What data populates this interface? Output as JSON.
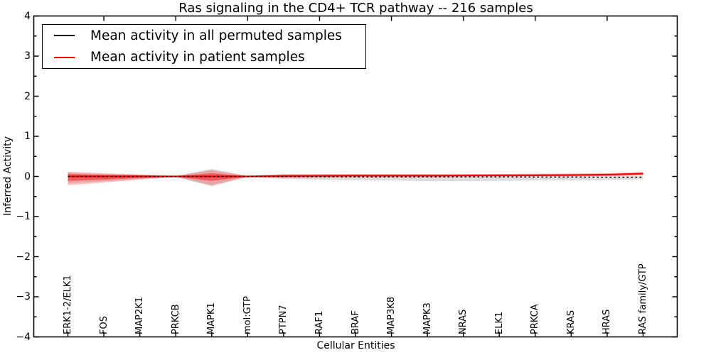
{
  "title": "Ras signaling in the CD4+ TCR pathway -- 216 samples",
  "axes": {
    "xlabel": "Cellular Entities",
    "ylabel": "Inferred Activity",
    "yticks": [
      4,
      3,
      2,
      1,
      0,
      -1,
      -2,
      -3,
      -4
    ],
    "yminor_step": 0.5
  },
  "legend": {
    "items": [
      {
        "label": "Mean activity in all permuted samples",
        "color": "#000000"
      },
      {
        "label": "Mean activity in patient samples",
        "color": "#ff0000"
      }
    ]
  },
  "chart_data": {
    "type": "line",
    "title": "Ras signaling in the CD4+ TCR pathway -- 216 samples",
    "xlabel": "Cellular Entities",
    "ylabel": "Inferred Activity",
    "ylim": [
      -4,
      4
    ],
    "xlim": [
      -0.95,
      16.95
    ],
    "grid": false,
    "legend_position": "upper left",
    "categories": [
      "ERK1-2/ELK1",
      "FOS",
      "MAP2K1",
      "PRKCB",
      "MAPK1",
      "mol:GTP",
      "PTPN7",
      "RAF1",
      "BRAF",
      "MAP3K8",
      "MAPK3",
      "NRAS",
      "ELK1",
      "PRKCA",
      "KRAS",
      "HRAS",
      "RAS family/GTP"
    ],
    "series": [
      {
        "name": "Mean activity in patient samples",
        "color": "#ff0000",
        "linestyle": "solid",
        "values": [
          0,
          0,
          0,
          0,
          0,
          0,
          0.01,
          0.015,
          0.02,
          0.02,
          0.02,
          0.025,
          0.03,
          0.03,
          0.035,
          0.045,
          0.07
        ]
      },
      {
        "name": "Mean activity in all permuted samples",
        "color": "#000000",
        "linestyle": "dashed",
        "values": [
          0,
          0,
          0,
          0,
          0,
          0,
          0,
          -0.005,
          -0.01,
          -0.01,
          -0.01,
          -0.01,
          -0.01,
          -0.015,
          -0.015,
          -0.02,
          -0.02
        ]
      }
    ],
    "bands": [
      {
        "name": "permuted-samples-range",
        "color": "#888888",
        "opacity": 0.28,
        "upper": [
          0.09,
          0.06,
          0.04,
          0.01,
          0.19,
          0.01,
          0.05,
          0.04,
          0.05,
          0.05,
          0.05,
          0.04,
          0.04,
          0.04,
          0.04,
          0.03,
          0.02
        ],
        "lower": [
          -0.17,
          -0.12,
          -0.06,
          -0.01,
          -0.25,
          -0.01,
          -0.06,
          -0.08,
          -0.09,
          -0.1,
          -0.12,
          -0.12,
          -0.11,
          -0.1,
          -0.1,
          -0.09,
          -0.07
        ]
      },
      {
        "name": "patient-samples-range-outer",
        "color": "#ff0000",
        "opacity": 0.25,
        "upper": [
          0.12,
          0.08,
          0.05,
          0.01,
          0.16,
          0.01,
          0.06,
          0.06,
          0.06,
          0.06,
          0.06,
          0.06,
          0.06,
          0.07,
          0.07,
          0.08,
          0.11
        ],
        "lower": [
          -0.22,
          -0.15,
          -0.08,
          -0.01,
          -0.22,
          -0.01,
          -0.04,
          -0.03,
          -0.02,
          -0.02,
          -0.02,
          -0.01,
          -0.01,
          0.0,
          0.0,
          0.01,
          0.03
        ]
      },
      {
        "name": "patient-samples-range-inner",
        "color": "#ff0000",
        "opacity": 0.45,
        "upper": [
          0.06,
          0.04,
          0.03,
          0.005,
          0.08,
          0.005,
          0.035,
          0.04,
          0.04,
          0.04,
          0.04,
          0.04,
          0.045,
          0.045,
          0.05,
          0.055,
          0.09
        ],
        "lower": [
          -0.11,
          -0.08,
          -0.04,
          -0.005,
          -0.11,
          -0.005,
          -0.015,
          -0.005,
          0.0,
          0.0,
          0.0,
          0.005,
          0.01,
          0.01,
          0.015,
          0.025,
          0.05
        ]
      }
    ]
  }
}
